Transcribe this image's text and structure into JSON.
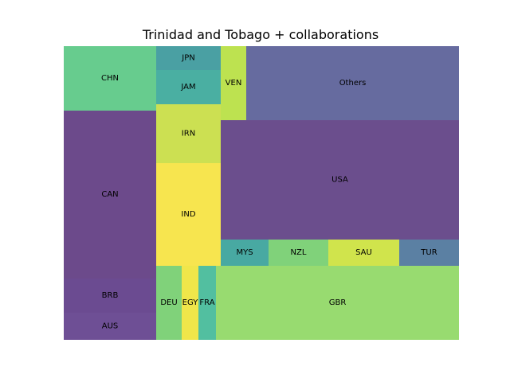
{
  "chart_data": {
    "type": "treemap",
    "title": "Trinidad and Tobago + collaborations",
    "cells": [
      {
        "label": "CHN",
        "value": 94,
        "color": "#67cc8e"
      },
      {
        "label": "CAN",
        "value": 243,
        "color": "#6c4a8b"
      },
      {
        "label": "BRB",
        "value": 50,
        "color": "#6b4b91"
      },
      {
        "label": "AUS",
        "value": 39,
        "color": "#6e4f95"
      },
      {
        "label": "JPN",
        "value": 21,
        "color": "#4aa0a3"
      },
      {
        "label": "JAM",
        "value": 35,
        "color": "#4aafa2"
      },
      {
        "label": "IRN",
        "value": 60,
        "color": "#cce052"
      },
      {
        "label": "IND",
        "value": 104,
        "color": "#f7e54f"
      },
      {
        "label": "VEN",
        "value": 24,
        "color": "#bde250"
      },
      {
        "label": "Others",
        "value": 196,
        "color": "#666b9f"
      },
      {
        "label": "USA",
        "value": 352,
        "color": "#6b4e8d"
      },
      {
        "label": "MYS",
        "value": 16,
        "color": "#48a9a2"
      },
      {
        "label": "NZL",
        "value": 16,
        "color": "#80d27a"
      },
      {
        "label": "SAU",
        "value": 24,
        "color": "#d0e44c"
      },
      {
        "label": "TUR",
        "value": 19,
        "color": "#5b80a3"
      },
      {
        "label": "DEU",
        "value": 25,
        "color": "#80d27a"
      },
      {
        "label": "EGY",
        "value": 16,
        "color": "#f0e64a"
      },
      {
        "label": "FRA",
        "value": 16,
        "color": "#52bfa0"
      },
      {
        "label": "GBR",
        "value": 232,
        "color": "#98db70"
      }
    ]
  }
}
